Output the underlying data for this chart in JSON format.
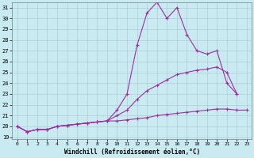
{
  "xlabel": "Windchill (Refroidissement éolien,°C)",
  "background_color": "#c8eaf0",
  "line_color": "#9b30a0",
  "grid_color": "#b0ccd8",
  "xlim": [
    -0.5,
    23.5
  ],
  "ylim": [
    18.8,
    31.5
  ],
  "yticks": [
    19,
    20,
    21,
    22,
    23,
    24,
    25,
    26,
    27,
    28,
    29,
    30,
    31
  ],
  "xticks": [
    0,
    1,
    2,
    3,
    4,
    5,
    6,
    7,
    8,
    9,
    10,
    11,
    12,
    13,
    14,
    15,
    16,
    17,
    18,
    19,
    20,
    21,
    22,
    23
  ],
  "series": [
    {
      "x": [
        0,
        1,
        2,
        3,
        4,
        5,
        6,
        7,
        8,
        9,
        10,
        11,
        12,
        13,
        14,
        15,
        16,
        17,
        18,
        19,
        20,
        21,
        22
      ],
      "y": [
        20.0,
        19.5,
        19.7,
        19.7,
        20.0,
        20.1,
        20.2,
        20.3,
        20.4,
        20.5,
        21.5,
        23.0,
        27.5,
        30.5,
        31.5,
        30.0,
        31.0,
        28.5,
        27.0,
        26.7,
        27.0,
        24.0,
        23.0
      ]
    },
    {
      "x": [
        0,
        1,
        2,
        3,
        4,
        5,
        6,
        7,
        8,
        9,
        10,
        11,
        12,
        13,
        14,
        15,
        16,
        17,
        18,
        19,
        20,
        21,
        22
      ],
      "y": [
        20.0,
        19.5,
        19.7,
        19.7,
        20.0,
        20.1,
        20.2,
        20.3,
        20.4,
        20.5,
        21.0,
        21.5,
        22.5,
        23.3,
        23.8,
        24.3,
        24.8,
        25.0,
        25.2,
        25.3,
        25.5,
        25.0,
        23.0
      ]
    },
    {
      "x": [
        0,
        1,
        2,
        3,
        4,
        5,
        6,
        7,
        8,
        9,
        10,
        11,
        12,
        13,
        14,
        15,
        16,
        17,
        18,
        19,
        20,
        21,
        22,
        23
      ],
      "y": [
        20.0,
        19.5,
        19.7,
        19.7,
        20.0,
        20.1,
        20.2,
        20.3,
        20.4,
        20.5,
        20.5,
        20.6,
        20.7,
        20.8,
        21.0,
        21.1,
        21.2,
        21.3,
        21.4,
        21.5,
        21.6,
        21.6,
        21.5,
        21.5
      ]
    }
  ]
}
